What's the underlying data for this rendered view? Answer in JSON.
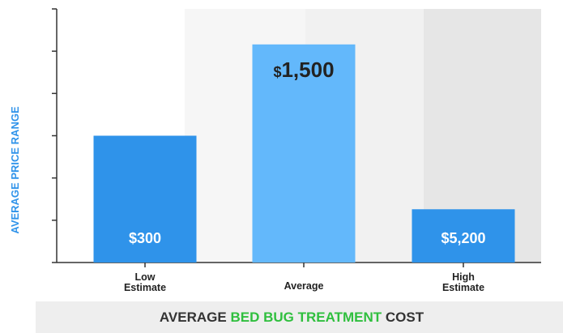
{
  "chart_data": {
    "type": "bar",
    "title_parts": [
      {
        "text": "AVERAGE ",
        "color": "#333333"
      },
      {
        "text": "BED BUG TREATMENT",
        "color": "#2fbf3e"
      },
      {
        "text": " COST",
        "color": "#333333"
      }
    ],
    "ylabel": "AVERAGE PRICE RANGE",
    "categories": [
      {
        "lines": [
          "Low",
          "Estimate"
        ]
      },
      {
        "lines": [
          "Average"
        ]
      },
      {
        "lines": [
          "High",
          "Estimate"
        ]
      }
    ],
    "bars": [
      {
        "label": "$300",
        "level": 0.5,
        "color": "#2f93ea",
        "label_color": "#ffffff"
      },
      {
        "label": "$1,500",
        "level": 0.86,
        "color": "#63b8fb",
        "label_color": "#222222"
      },
      {
        "label": "$5,200",
        "level": 0.21,
        "color": "#2f93ea",
        "label_color": "#ffffff"
      }
    ],
    "ytick_count": 6,
    "grid": false,
    "colors": {
      "axis": "#333333",
      "ylabel": "#2f93ea",
      "band_light": "#f6f6f6",
      "band_mid": "#f1f1f1",
      "band_dark": "#e6e6e6",
      "footer": "#eeeeee"
    }
  }
}
